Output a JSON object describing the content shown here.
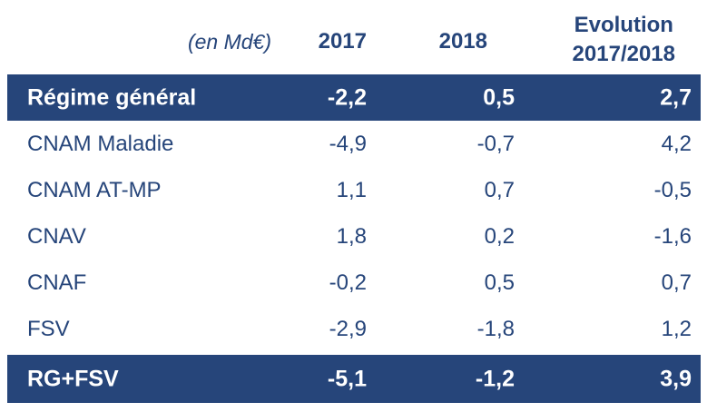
{
  "table": {
    "unit_label": "(en Md€)",
    "columns": {
      "y2017": "2017",
      "y2018": "2018",
      "evolution_line1": "Evolution",
      "evolution_line2": "2017/2018"
    },
    "header_band": {
      "label": "Régime général",
      "y2017": "-2,2",
      "y2018": "0,5",
      "evolution": "2,7"
    },
    "rows": [
      {
        "label": "CNAM Maladie",
        "y2017": "-4,9",
        "y2018": "-0,7",
        "evolution": "4,2"
      },
      {
        "label": "CNAM AT-MP",
        "y2017": "1,1",
        "y2018": "0,7",
        "evolution": "-0,5"
      },
      {
        "label": "CNAV",
        "y2017": "1,8",
        "y2018": "0,2",
        "evolution": "-1,6"
      },
      {
        "label": "CNAF",
        "y2017": "-0,2",
        "y2018": "0,5",
        "evolution": "0,7"
      },
      {
        "label": "FSV",
        "y2017": "-2,9",
        "y2018": "-1,8",
        "evolution": "1,2"
      }
    ],
    "total_band": {
      "label": "RG+FSV",
      "y2017": "-5,1",
      "y2018": "-1,2",
      "evolution": "3,9"
    }
  },
  "colors": {
    "band_background": "#26457a",
    "text_primary": "#26457a",
    "band_text": "#ffffff"
  }
}
